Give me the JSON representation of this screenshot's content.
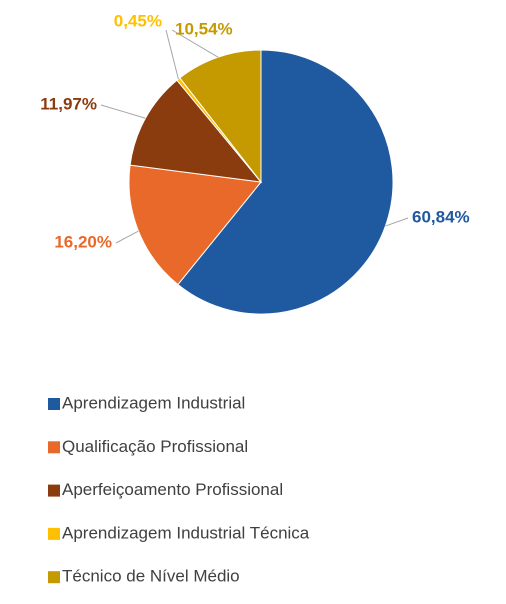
{
  "chart_data": {
    "type": "pie",
    "categories": [
      "Aprendizagem Industrial",
      "Qualificação Profissional",
      "Aperfeiçoamento Profissional",
      "Aprendizagem Industrial Técnica",
      "Técnico de Nível Médio"
    ],
    "values": [
      60.84,
      16.2,
      11.97,
      0.45,
      10.54
    ],
    "value_labels": [
      "60,84%",
      "16,20%",
      "11,97%",
      "0,45%",
      "10,54%"
    ],
    "colors": [
      "#1F5AA0",
      "#E8692A",
      "#8B3C0E",
      "#FFC000",
      "#C49A00"
    ]
  }
}
